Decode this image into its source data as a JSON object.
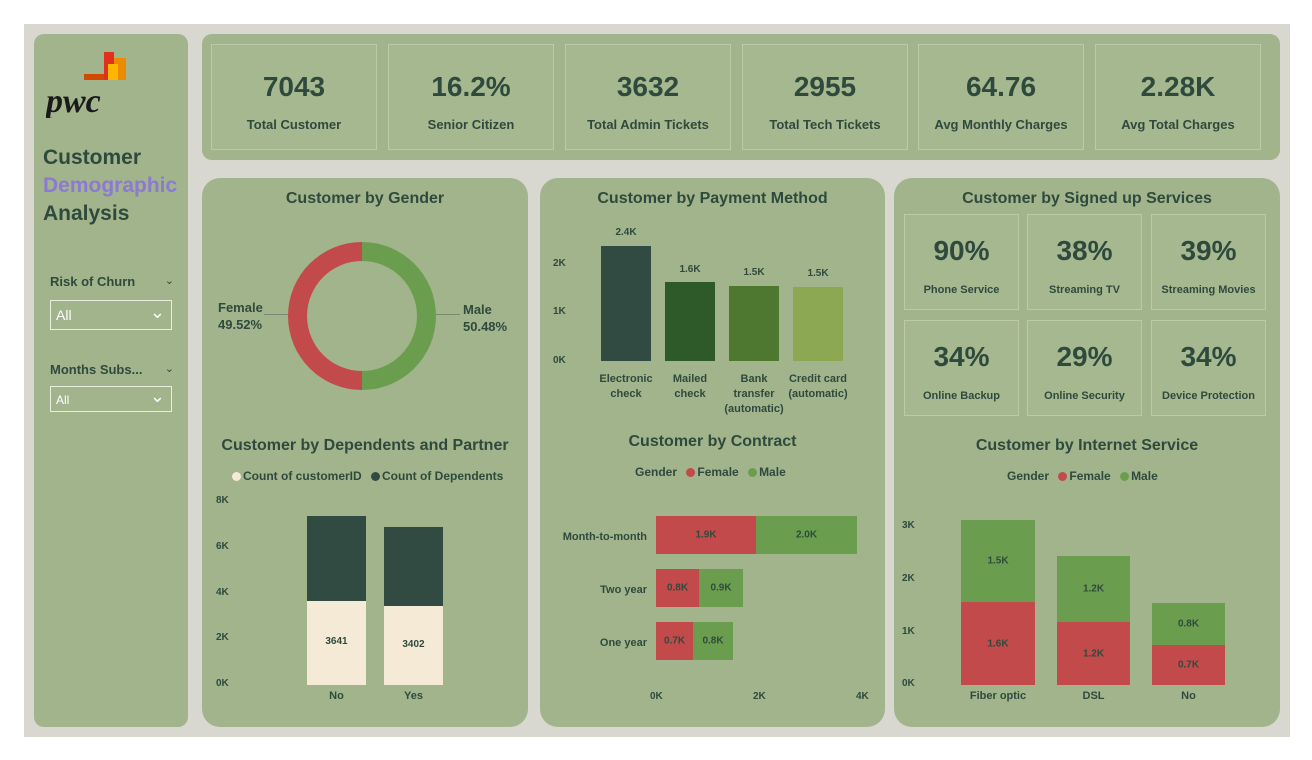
{
  "colors": {
    "panel": "#a2b48c",
    "card": "#a6b890",
    "text": "#2f4a3d",
    "female": "#c24a4b",
    "male": "#6a9e4e",
    "dark": "#314a42",
    "cream": "#f5ead5",
    "accent_purple": "#8c79d4"
  },
  "brand": {
    "logo_text": "pwc"
  },
  "sidebar": {
    "title_line1": "Customer",
    "title_line2": "Demographic",
    "title_line3": "Analysis",
    "filter1": {
      "label": "Risk of Churn",
      "value": "All"
    },
    "filter2": {
      "label": "Months Subs...",
      "value": "All"
    }
  },
  "kpis": [
    {
      "value": "7043",
      "label": "Total Customer"
    },
    {
      "value": "16.2%",
      "label": "Senior Citizen"
    },
    {
      "value": "3632",
      "label": "Total Admin Tickets"
    },
    {
      "value": "2955",
      "label": "Total Tech Tickets"
    },
    {
      "value": "64.76",
      "label": "Avg Monthly Charges"
    },
    {
      "value": "2.28K",
      "label": "Avg Total Charges"
    }
  ],
  "gender_chart": {
    "title": "Customer by Gender",
    "female_label": "Female",
    "female_value": "49.52%",
    "male_label": "Male",
    "male_value": "50.48%"
  },
  "dependents_chart": {
    "title": "Customer by Dependents and Partner",
    "legend1": "Count of customerID",
    "legend2": "Count of Dependents",
    "yticks": [
      "8K",
      "6K",
      "4K",
      "2K",
      "0K"
    ],
    "categories": [
      "No",
      "Yes"
    ],
    "bottom_labels": [
      "3641",
      "3402"
    ]
  },
  "payment_chart": {
    "title": "Customer by Payment Method",
    "yticks": [
      "2K",
      "1K",
      "0K"
    ],
    "categories_line1": [
      "Electronic",
      "Mailed",
      "Bank",
      "Credit card"
    ],
    "categories_line2": [
      "check",
      "check",
      "transfer",
      "(automatic)"
    ],
    "categories_line3": [
      "",
      "",
      "(automatic)",
      ""
    ],
    "labels": [
      "2.4K",
      "1.6K",
      "1.5K",
      "1.5K"
    ]
  },
  "contract_chart": {
    "title": "Customer by Contract",
    "legend_title": "Gender",
    "legend_female": "Female",
    "legend_male": "Male",
    "categories": [
      "Month-to-month",
      "Two year",
      "One year"
    ],
    "female_labels": [
      "1.9K",
      "0.8K",
      "0.7K"
    ],
    "male_labels": [
      "2.0K",
      "0.9K",
      "0.8K"
    ],
    "xticks": [
      "0K",
      "2K",
      "4K"
    ]
  },
  "services": {
    "title": "Customer by Signed up Services",
    "items": [
      {
        "value": "90%",
        "label": "Phone Service"
      },
      {
        "value": "38%",
        "label": "Streaming TV"
      },
      {
        "value": "39%",
        "label": "Streaming Movies"
      },
      {
        "value": "34%",
        "label": "Online Backup"
      },
      {
        "value": "29%",
        "label": "Online Security"
      },
      {
        "value": "34%",
        "label": "Device Protection"
      }
    ]
  },
  "internet_chart": {
    "title": "Customer by Internet Service",
    "legend_title": "Gender",
    "legend_female": "Female",
    "legend_male": "Male",
    "yticks": [
      "3K",
      "2K",
      "1K",
      "0K"
    ],
    "categories": [
      "Fiber optic",
      "DSL",
      "No"
    ],
    "female_labels": [
      "1.6K",
      "1.2K",
      "0.7K"
    ],
    "male_labels": [
      "1.5K",
      "1.2K",
      "0.8K"
    ]
  },
  "chart_data": [
    {
      "type": "pie",
      "title": "Customer by Gender",
      "labels": [
        "Female",
        "Male"
      ],
      "values": [
        49.52,
        50.48
      ]
    },
    {
      "type": "bar",
      "title": "Customer by Dependents and Partner",
      "categories": [
        "No",
        "Yes"
      ],
      "series": [
        {
          "name": "Count of customerID",
          "values": [
            3641,
            3402
          ]
        },
        {
          "name": "Count of Dependents",
          "values": [
            3710,
            3290
          ]
        }
      ],
      "ylim": [
        0,
        8000
      ]
    },
    {
      "type": "bar",
      "title": "Customer by Payment Method",
      "categories": [
        "Electronic check",
        "Mailed check",
        "Bank transfer (automatic)",
        "Credit card (automatic)"
      ],
      "values": [
        2400,
        1600,
        1500,
        1500
      ],
      "ylim": [
        0,
        2400
      ]
    },
    {
      "type": "bar",
      "title": "Customer by Contract",
      "categories": [
        "Month-to-month",
        "Two year",
        "One year"
      ],
      "series": [
        {
          "name": "Female",
          "values": [
            1900,
            800,
            700
          ]
        },
        {
          "name": "Male",
          "values": [
            2000,
            900,
            800
          ]
        }
      ],
      "xlim": [
        0,
        4000
      ]
    },
    {
      "type": "bar",
      "title": "Customer by Internet Service",
      "categories": [
        "Fiber optic",
        "DSL",
        "No"
      ],
      "series": [
        {
          "name": "Female",
          "values": [
            1600,
            1200,
            700
          ]
        },
        {
          "name": "Male",
          "values": [
            1500,
            1200,
            800
          ]
        }
      ],
      "ylim": [
        0,
        3000
      ]
    }
  ]
}
